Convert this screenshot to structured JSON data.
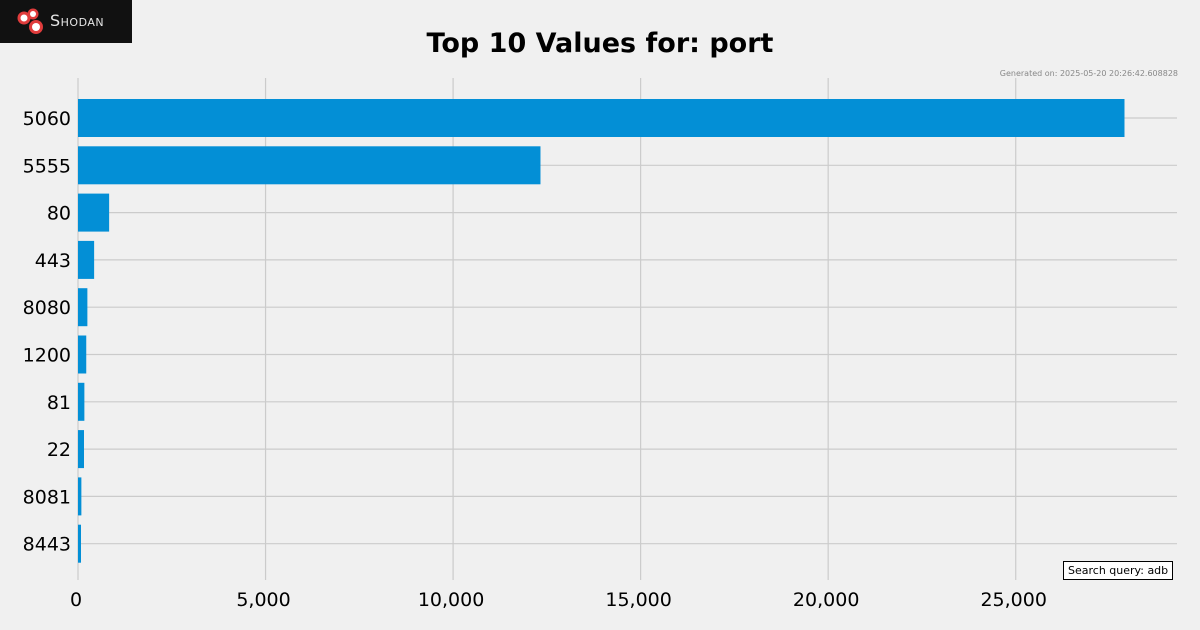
{
  "logo": {
    "text": "Shodan"
  },
  "title": "Top 10 Values for: port",
  "generated": "Generated on: 2025-05-20 20:26:42.608828",
  "query": "Search query: adb",
  "colors": {
    "bar": "#038fd6",
    "background": "#f0f0f0",
    "grid": "#cbcbcb",
    "logo_bg": "#111111",
    "logo_accent": "#e03c3c"
  },
  "chart_data": {
    "type": "bar",
    "orientation": "horizontal",
    "title": "Top 10 Values for: port",
    "xlabel": "",
    "ylabel": "",
    "categories": [
      "5060",
      "5555",
      "80",
      "443",
      "8080",
      "1200",
      "81",
      "22",
      "8081",
      "8443"
    ],
    "values": [
      27900,
      12330,
      830,
      430,
      250,
      220,
      170,
      160,
      90,
      80
    ],
    "xlim": [
      0,
      29300
    ],
    "xticks": [
      0,
      5000,
      10000,
      15000,
      20000,
      25000
    ],
    "xtick_labels": [
      "0",
      "5,000",
      "10,000",
      "15,000",
      "20,000",
      "25,000"
    ],
    "grid": true,
    "legend": "none"
  }
}
